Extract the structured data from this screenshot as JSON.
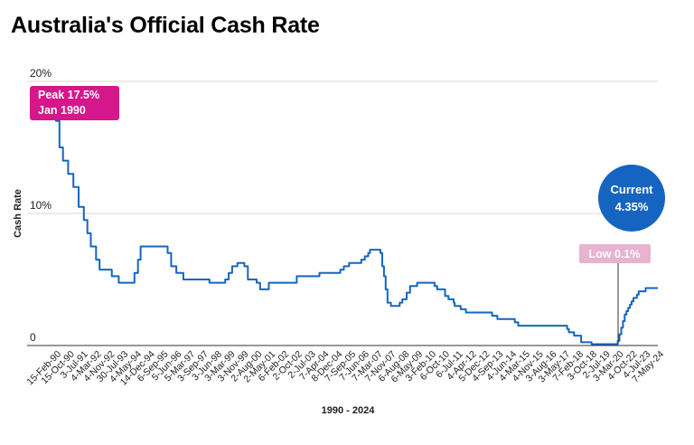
{
  "title": "Australia's Official Cash Rate",
  "colors": {
    "line": "#1565c0",
    "peak": "#d6168b",
    "current": "#1565c0",
    "low": "#e8b3cf"
  },
  "chart_data": {
    "type": "line",
    "title": "Australia's Official Cash Rate",
    "xlabel": "1990 - 2024",
    "ylabel": "Cash Rate",
    "ylim": [
      0,
      20
    ],
    "yticks": [
      {
        "value": 0,
        "label": "0"
      },
      {
        "value": 10,
        "label": "10%"
      },
      {
        "value": 20,
        "label": "20%"
      }
    ],
    "xticks": [
      "15-Feb-90",
      "15-Oct-90",
      "3-Jul-91",
      "4-Mar-92",
      "4-Nov-92",
      "30-Jul-93",
      "4-May-94",
      "14-Dec-94",
      "6-Sep-95",
      "5-Jun-96",
      "5-Mar-97",
      "3-Sep-97",
      "3-Jun-98",
      "3-Mar-99",
      "3-Nov-99",
      "2-Aug-00",
      "2-May-01",
      "6-Feb-02",
      "2-Oct-02",
      "2-Jul-03",
      "7-Apr-04",
      "8-Dec-04",
      "7-Sep-05",
      "7-Jun-06",
      "7-Mar-07",
      "7-Nov-07",
      "6-Aug-08",
      "6-May-09",
      "3-Feb-10",
      "6-Oct-10",
      "6-Jul-11",
      "4-Apr-12",
      "5-Dec-12",
      "4-Sep-13",
      "4-Jun-14",
      "4-Mar-15",
      "4-Nov-15",
      "3-Aug-16",
      "3-May-17",
      "7-Feb-18",
      "3-Oct-18",
      "2-Jul-19",
      "3-Mar-20",
      "4-Oct-22",
      "4-Jul-23",
      "7-May-24"
    ],
    "grid": true,
    "series": [
      {
        "values": [
          [
            1990.0,
            17.5
          ],
          [
            1990.1,
            17.0
          ],
          [
            1990.3,
            15.0
          ],
          [
            1990.5,
            14.0
          ],
          [
            1990.8,
            13.0
          ],
          [
            1991.1,
            12.0
          ],
          [
            1991.4,
            10.5
          ],
          [
            1991.7,
            9.5
          ],
          [
            1991.9,
            8.5
          ],
          [
            1992.1,
            7.5
          ],
          [
            1992.4,
            6.5
          ],
          [
            1992.6,
            5.75
          ],
          [
            1993.3,
            5.25
          ],
          [
            1993.7,
            4.75
          ],
          [
            1994.6,
            5.5
          ],
          [
            1994.8,
            6.5
          ],
          [
            1994.95,
            7.5
          ],
          [
            1996.5,
            7.0
          ],
          [
            1996.7,
            6.0
          ],
          [
            1997.0,
            5.5
          ],
          [
            1997.4,
            5.0
          ],
          [
            1998.9,
            4.75
          ],
          [
            1999.8,
            5.0
          ],
          [
            2000.0,
            5.5
          ],
          [
            2000.2,
            6.0
          ],
          [
            2000.5,
            6.25
          ],
          [
            2000.9,
            6.0
          ],
          [
            2001.1,
            5.0
          ],
          [
            2001.6,
            4.75
          ],
          [
            2001.8,
            4.25
          ],
          [
            2002.3,
            4.75
          ],
          [
            2003.9,
            5.25
          ],
          [
            2005.2,
            5.5
          ],
          [
            2006.4,
            5.75
          ],
          [
            2006.6,
            6.0
          ],
          [
            2006.9,
            6.25
          ],
          [
            2007.6,
            6.5
          ],
          [
            2007.8,
            6.75
          ],
          [
            2008.0,
            7.0
          ],
          [
            2008.1,
            7.25
          ],
          [
            2008.7,
            7.0
          ],
          [
            2008.8,
            6.0
          ],
          [
            2008.9,
            5.25
          ],
          [
            2009.0,
            4.25
          ],
          [
            2009.1,
            3.25
          ],
          [
            2009.3,
            3.0
          ],
          [
            2009.8,
            3.25
          ],
          [
            2009.95,
            3.5
          ],
          [
            2010.2,
            4.0
          ],
          [
            2010.4,
            4.5
          ],
          [
            2010.8,
            4.75
          ],
          [
            2011.8,
            4.5
          ],
          [
            2011.95,
            4.25
          ],
          [
            2012.4,
            3.75
          ],
          [
            2012.6,
            3.5
          ],
          [
            2012.9,
            3.25
          ],
          [
            2012.95,
            3.0
          ],
          [
            2013.3,
            2.75
          ],
          [
            2013.6,
            2.5
          ],
          [
            2015.1,
            2.25
          ],
          [
            2015.4,
            2.0
          ],
          [
            2016.4,
            1.75
          ],
          [
            2016.6,
            1.5
          ],
          [
            2019.4,
            1.25
          ],
          [
            2019.5,
            1.0
          ],
          [
            2019.8,
            0.75
          ],
          [
            2020.2,
            0.25
          ],
          [
            2020.8,
            0.1
          ],
          [
            2022.3,
            0.35
          ],
          [
            2022.4,
            0.85
          ],
          [
            2022.5,
            1.35
          ],
          [
            2022.6,
            1.85
          ],
          [
            2022.7,
            2.35
          ],
          [
            2022.8,
            2.6
          ],
          [
            2022.9,
            2.85
          ],
          [
            2023.0,
            3.1
          ],
          [
            2023.1,
            3.35
          ],
          [
            2023.2,
            3.6
          ],
          [
            2023.4,
            3.85
          ],
          [
            2023.5,
            4.1
          ],
          [
            2023.9,
            4.35
          ],
          [
            2024.6,
            4.35
          ]
        ]
      }
    ],
    "annotations": {
      "peak": {
        "line1": "Peak 17.5%",
        "line2": "Jan 1990"
      },
      "current": {
        "line1": "Current",
        "line2": "4.35%"
      },
      "low": {
        "label": "Low 0.1%"
      }
    }
  }
}
